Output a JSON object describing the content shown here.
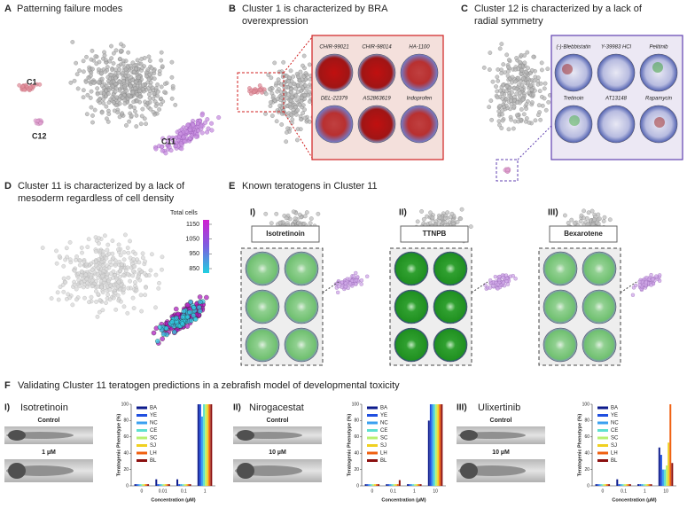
{
  "panels": {
    "A": {
      "letter": "A",
      "title": "Patterning failure modes",
      "clusters": [
        "C1",
        "C12",
        "C11"
      ]
    },
    "B": {
      "letter": "B",
      "title": [
        "Cluster 1 is characterized by BRA",
        "overexpression"
      ],
      "compounds": [
        "CHIR-99021",
        "CHIR-98014",
        "HA-1100",
        "DEL-22379",
        "AS2863619",
        "Indoprofen"
      ]
    },
    "C": {
      "letter": "C",
      "title": [
        "Cluster 12 is characterized by a lack of",
        "radial symmetry"
      ],
      "compounds": [
        "(-)-Blebbistatin",
        "Y-39983 HCl",
        "Pelitinib",
        "Tretinoin",
        "AT13148",
        "Rapamycin"
      ]
    },
    "D": {
      "letter": "D",
      "title": [
        "Cluster 11 is characterized by a lack of",
        "mesoderm regardless of cell density"
      ],
      "colorbar_title": "Total cells",
      "colorbar_ticks": [
        1150,
        1050,
        950,
        850
      ],
      "colorbar_lim": [
        820,
        1180
      ]
    },
    "E": {
      "letter": "E",
      "title": "Known teratogens in Cluster 11",
      "items": [
        {
          "numeral": "I)",
          "compound": "Isotretinoin"
        },
        {
          "numeral": "II)",
          "compound": "TTNPB"
        },
        {
          "numeral": "III)",
          "compound": "Bexarotene"
        }
      ]
    },
    "F": {
      "letter": "F",
      "title": "Validating Cluster 11 teratogen predictions in a zebrafish model of developmental toxicity",
      "items": [
        {
          "numeral": "I)",
          "compound": "Isotretinoin",
          "control": "Control",
          "dose": "1 µM"
        },
        {
          "numeral": "II)",
          "compound": "Nirogacestat",
          "control": "Control",
          "dose": "10 µM"
        },
        {
          "numeral": "III)",
          "compound": "Ulixertinib",
          "control": "Control",
          "dose": "10 µM"
        }
      ]
    }
  },
  "chart_data": [
    {
      "type": "bar",
      "ylabel": "Teratogenic Phenotype (%)",
      "xlabel": "Concentration (µM)",
      "categories": [
        "0",
        "0.01",
        "0.1",
        "1"
      ],
      "ylim": [
        0,
        100
      ],
      "yticks": [
        0,
        20,
        40,
        60,
        80,
        100
      ],
      "legend": "upper left",
      "series": [
        {
          "name": "BA",
          "color": "#0d1b8c",
          "values": [
            2,
            8,
            8,
            100
          ]
        },
        {
          "name": "YE",
          "color": "#1f4fe0",
          "values": [
            2,
            2,
            2,
            100
          ]
        },
        {
          "name": "NC",
          "color": "#3aa0f0",
          "values": [
            2,
            2,
            2,
            85
          ]
        },
        {
          "name": "CE",
          "color": "#5ee0d0",
          "values": [
            2,
            2,
            2,
            100
          ]
        },
        {
          "name": "SC",
          "color": "#b8f070",
          "values": [
            2,
            2,
            2,
            100
          ]
        },
        {
          "name": "SJ",
          "color": "#f0d020",
          "values": [
            2,
            2,
            2,
            100
          ]
        },
        {
          "name": "LH",
          "color": "#f06010",
          "values": [
            2,
            2,
            2,
            100
          ]
        },
        {
          "name": "BL",
          "color": "#8b1010",
          "values": [
            2,
            2,
            2,
            100
          ]
        }
      ]
    },
    {
      "type": "bar",
      "ylabel": "Teratogenic Phenotype (%)",
      "xlabel": "Concentration (µM)",
      "categories": [
        "0",
        "0.1",
        "1",
        "10"
      ],
      "ylim": [
        0,
        100
      ],
      "yticks": [
        0,
        20,
        40,
        60,
        80,
        100
      ],
      "legend": "upper left",
      "series": [
        {
          "name": "BA",
          "color": "#0d1b8c",
          "values": [
            2,
            2,
            2,
            80
          ]
        },
        {
          "name": "YE",
          "color": "#1f4fe0",
          "values": [
            2,
            2,
            2,
            100
          ]
        },
        {
          "name": "NC",
          "color": "#3aa0f0",
          "values": [
            2,
            2,
            2,
            100
          ]
        },
        {
          "name": "CE",
          "color": "#5ee0d0",
          "values": [
            2,
            2,
            2,
            100
          ]
        },
        {
          "name": "SC",
          "color": "#b8f070",
          "values": [
            2,
            2,
            2,
            100
          ]
        },
        {
          "name": "SJ",
          "color": "#f0d020",
          "values": [
            2,
            2,
            2,
            100
          ]
        },
        {
          "name": "LH",
          "color": "#f06010",
          "values": [
            2,
            2,
            2,
            100
          ]
        },
        {
          "name": "BL",
          "color": "#8b1010",
          "values": [
            2,
            7,
            2,
            100
          ]
        }
      ]
    },
    {
      "type": "bar",
      "ylabel": "Teratogenic Phenotype (%)",
      "xlabel": "Concentration (µM)",
      "categories": [
        "0",
        "0.1",
        "1",
        "10"
      ],
      "ylim": [
        0,
        100
      ],
      "yticks": [
        0,
        20,
        40,
        60,
        80,
        100
      ],
      "legend": "upper left",
      "series": [
        {
          "name": "BA",
          "color": "#0d1b8c",
          "values": [
            2,
            8,
            2,
            47
          ]
        },
        {
          "name": "YE",
          "color": "#1f4fe0",
          "values": [
            2,
            2,
            2,
            38
          ]
        },
        {
          "name": "NC",
          "color": "#3aa0f0",
          "values": [
            2,
            2,
            2,
            20
          ]
        },
        {
          "name": "CE",
          "color": "#5ee0d0",
          "values": [
            2,
            2,
            2,
            20
          ]
        },
        {
          "name": "SC",
          "color": "#b8f070",
          "values": [
            2,
            2,
            2,
            25
          ]
        },
        {
          "name": "SJ",
          "color": "#f0d020",
          "values": [
            2,
            2,
            2,
            53
          ]
        },
        {
          "name": "LH",
          "color": "#f06010",
          "values": [
            2,
            2,
            2,
            100
          ]
        },
        {
          "name": "BL",
          "color": "#8b1010",
          "values": [
            2,
            2,
            2,
            28
          ]
        }
      ]
    }
  ]
}
